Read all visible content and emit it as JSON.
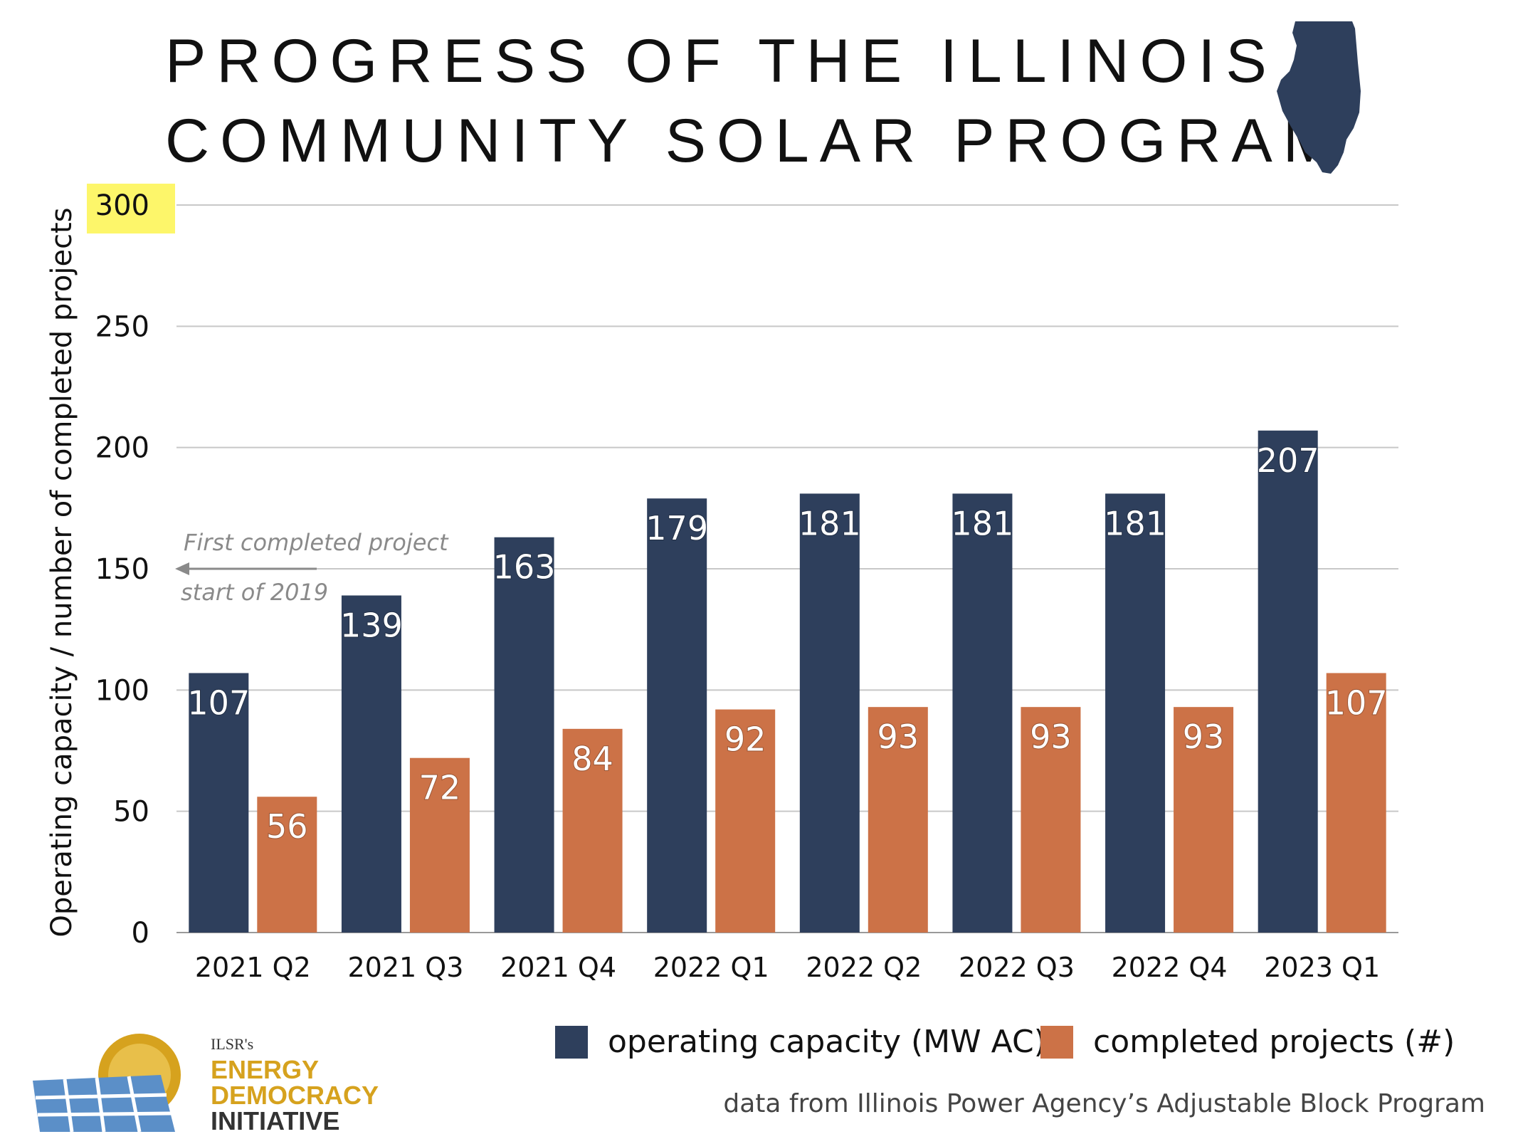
{
  "title_lines": [
    "PROGRESS OF THE ILLINOIS",
    "COMMUNITY SOLAR PROGRAM"
  ],
  "colors": {
    "capacity": "#2e3f5c",
    "projects": "#cc7247",
    "grid": "#c8c8c8",
    "highlight": "#fdf66a",
    "annotation": "#8a8a8a",
    "logo_gold": "#d6a21e",
    "logo_blue": "#5b8fc8",
    "logo_dark": "#333333"
  },
  "chart_data": {
    "type": "bar",
    "title": "PROGRESS OF THE ILLINOIS COMMUNITY SOLAR PROGRAM",
    "ylabel": "Operating capacity / number of completed projects",
    "xlabel": "",
    "ylim": [
      0,
      300
    ],
    "yticks": [
      0,
      50,
      100,
      150,
      200,
      250,
      300
    ],
    "highlighted_tick": 300,
    "grid": true,
    "legend_position": "bottom",
    "categories": [
      "2021 Q2",
      "2021 Q3",
      "2021 Q4",
      "2022 Q1",
      "2022 Q2",
      "2022 Q3",
      "2022 Q4",
      "2023 Q1"
    ],
    "series": [
      {
        "name": "operating capacity (MW AC)",
        "values": [
          107,
          139,
          163,
          179,
          181,
          181,
          181,
          207
        ]
      },
      {
        "name": "completed projects (#)",
        "values": [
          56,
          72,
          84,
          92,
          93,
          93,
          93,
          107
        ]
      }
    ],
    "annotation": {
      "lines": [
        "First completed project",
        "start of 2019"
      ],
      "y": 150,
      "arrow": "left"
    }
  },
  "legend": [
    {
      "label": "operating capacity (MW AC)",
      "icon": "square-swatch"
    },
    {
      "label": "completed projects (#)",
      "icon": "square-swatch"
    }
  ],
  "source_note": "data from Illinois Power Agency’s Adjustable Block Program",
  "state_icon": "illinois-state-icon",
  "logo": {
    "org": "ILSR's",
    "line1": "ENERGY",
    "line2": "DEMOCRACY",
    "line3": "INITIATIVE",
    "icon": "sun-solar-panel-icon"
  }
}
